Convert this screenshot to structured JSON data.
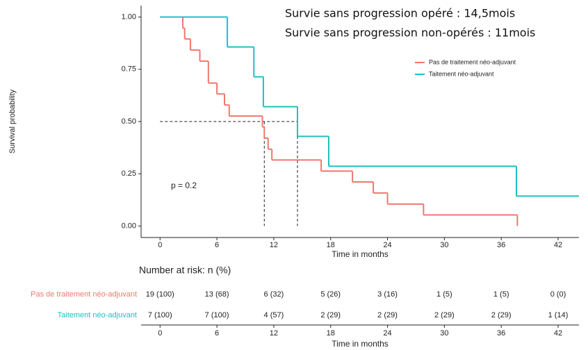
{
  "chart_data": {
    "type": "step",
    "ylabel": "Survival probability",
    "xlabel": "Time in months",
    "annotations": [
      "Survie sans progression opéré : 14,5mois",
      "Survie sans progression non-opérés : 11mois"
    ],
    "pvalue_text": "p = 0.2",
    "xlim": [
      -2,
      44.2
    ],
    "ylim": [
      -0.055,
      1.055
    ],
    "xticks": [
      0,
      6,
      12,
      18,
      24,
      30,
      36,
      42
    ],
    "yticks": [
      {
        "value": 0,
        "label": "0.00"
      },
      {
        "value": 0.25,
        "label": "0.25"
      },
      {
        "value": 0.5,
        "label": "0.50"
      },
      {
        "value": 0.75,
        "label": "0.75"
      },
      {
        "value": 1,
        "label": "1.00"
      }
    ],
    "legend_position": "top-right",
    "series": [
      {
        "name": "Pas de traitement néo-adjuvant",
        "color": "#f0776d",
        "time": [
          0,
          2.4,
          2.6,
          3.2,
          4.2,
          5.1,
          6.0,
          6.8,
          7.3,
          10.8,
          11.0,
          11.4,
          11.8,
          17.0,
          20.3,
          22.5,
          24.0,
          27.8,
          37.7
        ],
        "values": [
          1,
          0.947,
          0.895,
          0.842,
          0.789,
          0.684,
          0.632,
          0.579,
          0.526,
          0.474,
          0.421,
          0.368,
          0.316,
          0.263,
          0.211,
          0.158,
          0.105,
          0.053,
          0
        ]
      },
      {
        "name": "Taitement néo-adjuvant",
        "color": "#1fbfc0",
        "time": [
          0,
          7.1,
          9.9,
          10.9,
          14.5,
          17.8,
          37.6,
          44.2
        ],
        "values": [
          1,
          0.857,
          0.714,
          0.571,
          0.429,
          0.286,
          0.143,
          0.143
        ]
      }
    ],
    "reference_lines": {
      "level": 0.5,
      "times": [
        11,
        14.5
      ]
    },
    "risk_table": {
      "title": "Number at risk: n (%)",
      "xlabel": "Time in months",
      "rows": [
        [
          "19 (100)",
          "13 (68)",
          "6 (32)",
          "5 (26)",
          "3 (16)",
          "1 (5)",
          "1 (5)",
          "0 (0)"
        ],
        [
          "7 (100)",
          "7 (100)",
          "4 (57)",
          "2 (29)",
          "2 (29)",
          "2 (29)",
          "2 (29)",
          "1 (14)"
        ]
      ]
    }
  }
}
